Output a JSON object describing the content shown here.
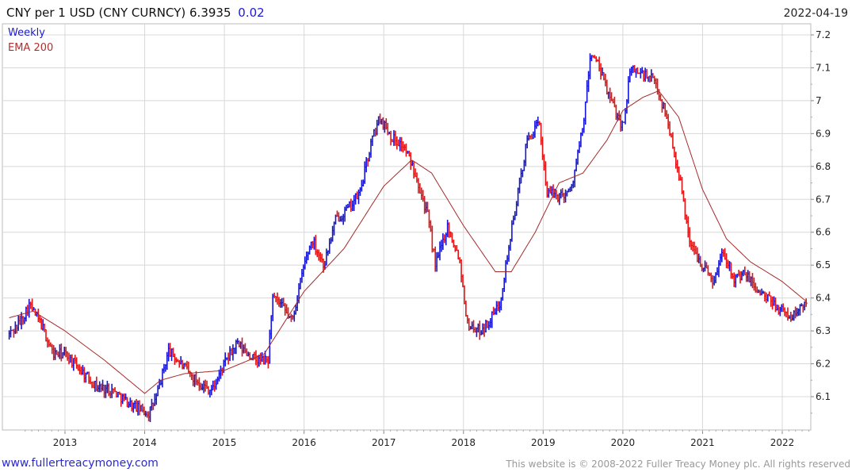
{
  "header": {
    "title": "CNY per 1 USD (CNY CURNCY) 6.3935",
    "change": "0.02",
    "date": "2022-04-19"
  },
  "legend": {
    "weekly": "Weekly",
    "ema": "EMA 200"
  },
  "footer": {
    "site": "www.fullertreacymoney.com",
    "copyright": "This website is © 2008-2022 Fuller Treacy Money plc. All rights reserved"
  },
  "colors": {
    "up": "#1414d2",
    "down": "#e01414",
    "ema": "#a52a2a",
    "grid": "#d8d8d8"
  },
  "chart_data": {
    "type": "line",
    "title": "CNY per 1 USD (CNY CURNCY) 6.3935",
    "xlabel": "",
    "ylabel": "",
    "ylim": [
      6.0,
      7.22
    ],
    "xlim": [
      2012.3,
      2022.35
    ],
    "yticks": [
      6.1,
      6.2,
      6.3,
      6.4,
      6.5,
      6.6,
      6.7,
      6.8,
      6.9,
      7,
      7.1,
      7.2
    ],
    "xticks": [
      2013,
      2014,
      2015,
      2016,
      2017,
      2018,
      2019,
      2020,
      2021,
      2022
    ],
    "grid": true,
    "y_axis_side": "right",
    "legend_position": "top-left",
    "series": [
      {
        "name": "Weekly",
        "style": "bar",
        "x": [
          2012.3,
          2012.45,
          2012.55,
          2012.7,
          2012.85,
          2013.0,
          2013.2,
          2013.4,
          2013.6,
          2013.8,
          2013.95,
          2014.05,
          2014.15,
          2014.3,
          2014.45,
          2014.6,
          2014.75,
          2014.85,
          2015.0,
          2015.15,
          2015.4,
          2015.55,
          2015.6,
          2015.7,
          2015.85,
          2016.0,
          2016.1,
          2016.25,
          2016.4,
          2016.55,
          2016.7,
          2016.85,
          2016.95,
          2017.1,
          2017.25,
          2017.4,
          2017.55,
          2017.65,
          2017.8,
          2017.95,
          2018.05,
          2018.2,
          2018.3,
          2018.45,
          2018.6,
          2018.8,
          2018.95,
          2019.05,
          2019.2,
          2019.35,
          2019.5,
          2019.6,
          2019.7,
          2019.85,
          2020.0,
          2020.1,
          2020.25,
          2020.4,
          2020.55,
          2020.7,
          2020.85,
          2021.0,
          2021.15,
          2021.25,
          2021.4,
          2021.55,
          2021.7,
          2021.85,
          2022.0,
          2022.1,
          2022.2,
          2022.3
        ],
        "values": [
          6.29,
          6.33,
          6.38,
          6.32,
          6.23,
          6.23,
          6.18,
          6.13,
          6.12,
          6.08,
          6.06,
          6.05,
          6.1,
          6.24,
          6.2,
          6.16,
          6.13,
          6.12,
          6.2,
          6.26,
          6.21,
          6.21,
          6.4,
          6.38,
          6.33,
          6.5,
          6.58,
          6.5,
          6.64,
          6.67,
          6.72,
          6.88,
          6.95,
          6.89,
          6.86,
          6.78,
          6.65,
          6.5,
          6.62,
          6.52,
          6.32,
          6.3,
          6.32,
          6.38,
          6.6,
          6.88,
          6.93,
          6.72,
          6.71,
          6.73,
          6.92,
          7.15,
          7.1,
          7.0,
          6.92,
          7.1,
          7.08,
          7.06,
          6.95,
          6.78,
          6.56,
          6.5,
          6.45,
          6.55,
          6.46,
          6.47,
          6.42,
          6.39,
          6.36,
          6.34,
          6.36,
          6.39
        ]
      },
      {
        "name": "EMA 200",
        "style": "line",
        "x": [
          2012.3,
          2012.6,
          2013.0,
          2013.5,
          2014.0,
          2014.2,
          2014.5,
          2015.0,
          2015.5,
          2016.0,
          2016.5,
          2017.0,
          2017.35,
          2017.6,
          2018.0,
          2018.4,
          2018.6,
          2018.9,
          2019.2,
          2019.5,
          2019.8,
          2020.0,
          2020.25,
          2020.45,
          2020.7,
          2021.0,
          2021.3,
          2021.6,
          2022.0,
          2022.3
        ],
        "values": [
          6.34,
          6.36,
          6.3,
          6.21,
          6.11,
          6.15,
          6.17,
          6.18,
          6.23,
          6.42,
          6.55,
          6.74,
          6.82,
          6.78,
          6.62,
          6.48,
          6.48,
          6.6,
          6.75,
          6.78,
          6.88,
          6.97,
          7.01,
          7.03,
          6.95,
          6.73,
          6.58,
          6.51,
          6.45,
          6.39
        ]
      }
    ]
  }
}
